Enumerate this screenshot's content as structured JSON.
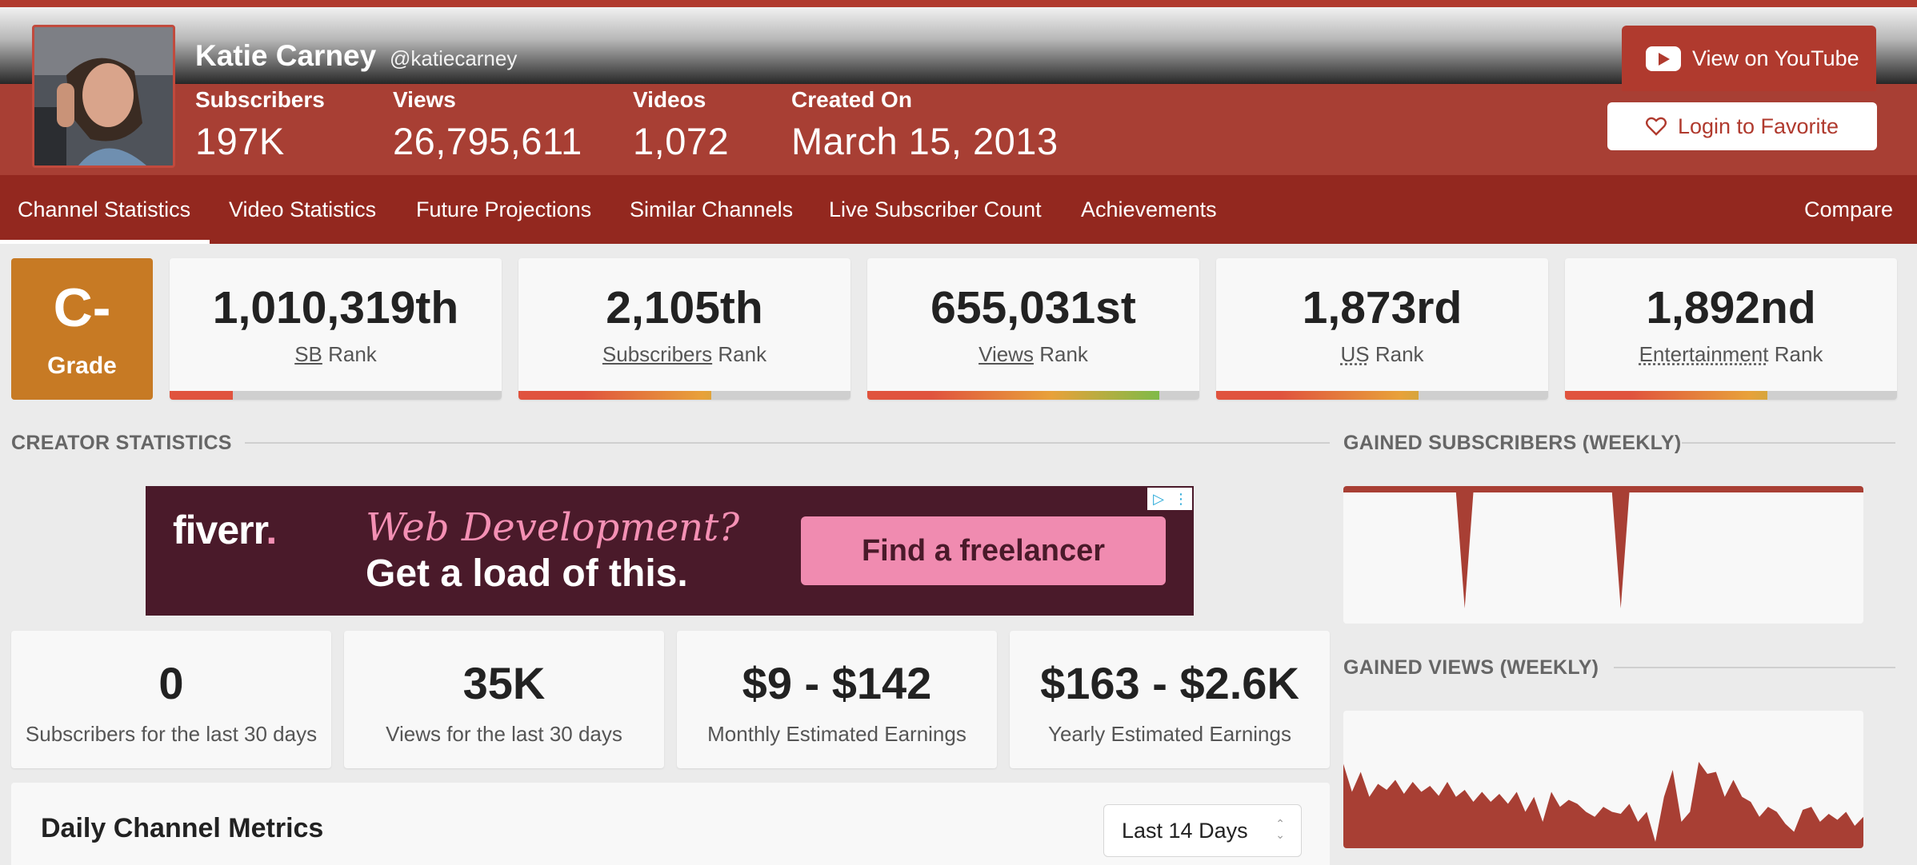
{
  "channel": {
    "name": "Katie Carney",
    "handle": "@katiecarney",
    "stats": [
      {
        "label": "Subscribers",
        "value": "197K"
      },
      {
        "label": "Views",
        "value": "26,795,611"
      },
      {
        "label": "Videos",
        "value": "1,072"
      },
      {
        "label": "Created On",
        "value": "March 15, 2013"
      }
    ],
    "youtube_button": "View on YouTube",
    "favorite_button": "Login to Favorite"
  },
  "nav": {
    "tabs": [
      {
        "label": "Channel Statistics",
        "active": true
      },
      {
        "label": "Video Statistics"
      },
      {
        "label": "Future Projections"
      },
      {
        "label": "Similar Channels"
      },
      {
        "label": "Live Subscriber Count"
      },
      {
        "label": "Achievements"
      }
    ],
    "compare": "Compare"
  },
  "grade": {
    "value": "C-",
    "label": "Grade"
  },
  "ranks": [
    {
      "value": "1,010,319th",
      "link": "SB",
      "suffix": "Rank",
      "fill": 0.19
    },
    {
      "value": "2,105th",
      "link": "Subscribers",
      "suffix": "Rank",
      "fill": 0.58
    },
    {
      "value": "655,031st",
      "link": "Views",
      "suffix": "Rank",
      "fill": 0.88
    },
    {
      "value": "1,873rd",
      "link": "US",
      "suffix": "Rank",
      "fill": 0.61
    },
    {
      "value": "1,892nd",
      "link": "Entertainment",
      "suffix": "Rank",
      "fill": 0.61
    }
  ],
  "sections": {
    "creator": "CREATOR STATISTICS",
    "gained_subs": "GAINED SUBSCRIBERS (WEEKLY)",
    "gained_views": "GAINED VIEWS (WEEKLY)"
  },
  "ad": {
    "logo": "fiverr",
    "logo_dot": ".",
    "line1": "Web Development?",
    "line2": "Get a load of this.",
    "cta": "Find a freelancer",
    "choice_icon": "▷",
    "menu_icon": "⋮"
  },
  "summary": [
    {
      "value": "0",
      "label": "Subscribers for the last 30 days"
    },
    {
      "value": "35K",
      "label": "Views for the last 30 days"
    },
    {
      "value": "$9 - $142",
      "label": "Monthly Estimated Earnings"
    },
    {
      "value": "$163 - $2.6K",
      "label": "Yearly Estimated Earnings"
    }
  ],
  "daily": {
    "title": "Daily Channel Metrics",
    "range": "Last 14 Days"
  },
  "colors": {
    "brand": "#a83f34",
    "nav": "#93281f",
    "grade": "#c77a24"
  },
  "chart_data": [
    {
      "type": "area",
      "title": "GAINED SUBSCRIBERS (WEEKLY)",
      "series": [
        {
          "values": [
            0,
            0,
            0,
            0,
            0,
            0,
            0,
            0,
            0,
            0,
            0,
            0,
            0,
            0,
            -1,
            0,
            0,
            0,
            0,
            0,
            0,
            0,
            0,
            0,
            0,
            0,
            0,
            0,
            0,
            0,
            0,
            0,
            -1,
            0,
            0,
            0,
            0,
            0,
            0,
            0,
            0,
            0,
            0,
            0,
            0,
            0,
            0,
            0,
            0,
            0,
            0,
            0,
            0,
            0,
            0,
            0,
            0,
            0,
            0,
            0,
            0
          ]
        }
      ]
    },
    {
      "type": "area",
      "title": "GAINED VIEWS (WEEKLY)",
      "series": [
        {
          "values": [
            0.78,
            0.5,
            0.7,
            0.45,
            0.58,
            0.52,
            0.62,
            0.48,
            0.6,
            0.5,
            0.56,
            0.46,
            0.6,
            0.45,
            0.52,
            0.4,
            0.5,
            0.4,
            0.48,
            0.38,
            0.5,
            0.3,
            0.45,
            0.2,
            0.5,
            0.35,
            0.42,
            0.38,
            0.3,
            0.25,
            0.35,
            0.3,
            0.28,
            0.38,
            0.2,
            0.3,
            0.0,
            0.45,
            0.72,
            0.2,
            0.3,
            0.8,
            0.68,
            0.7,
            0.45,
            0.62,
            0.45,
            0.4,
            0.25,
            0.35,
            0.3,
            0.18,
            0.1,
            0.32,
            0.35,
            0.2,
            0.28,
            0.22,
            0.3,
            0.16,
            0.25
          ]
        }
      ]
    }
  ]
}
